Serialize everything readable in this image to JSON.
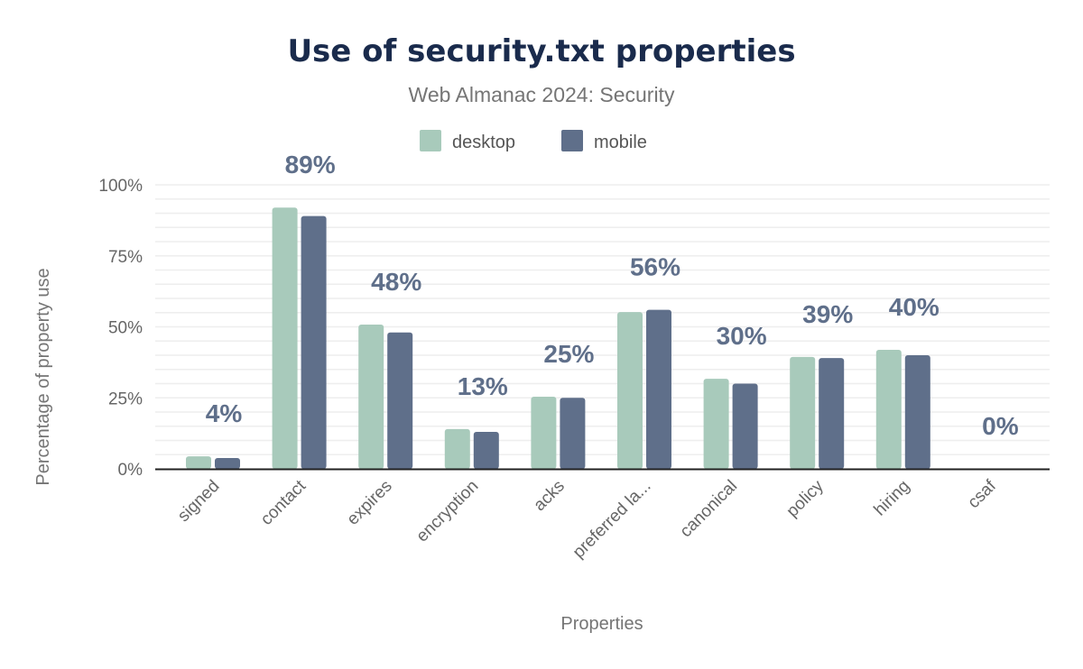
{
  "chart_data": {
    "type": "bar",
    "title": "Use of security.txt properties",
    "subtitle": "Web Almanac 2024: Security",
    "xlabel": "Properties",
    "ylabel": "Percentage of property use",
    "categories": [
      "signed",
      "contact",
      "expires",
      "encryption",
      "acks",
      "preferred la...",
      "canonical",
      "policy",
      "hiring",
      "csaf"
    ],
    "series": [
      {
        "name": "desktop",
        "color": "#a8cabb",
        "values": [
          4.4,
          92,
          50.8,
          14,
          25.4,
          55.2,
          31.7,
          39.4,
          41.9,
          0
        ]
      },
      {
        "name": "mobile",
        "color": "#5f6f8a",
        "values": [
          3.8,
          89,
          48,
          13,
          25,
          56,
          30,
          39,
          40,
          0
        ]
      }
    ],
    "data_labels": [
      "4%",
      "89%",
      "48%",
      "13%",
      "25%",
      "56%",
      "30%",
      "39%",
      "40%",
      "0%"
    ],
    "ylim": [
      0,
      100
    ],
    "yticks": [
      0,
      25,
      50,
      75,
      100
    ],
    "ytick_labels": [
      "0%",
      "25%",
      "50%",
      "75%",
      "100%"
    ],
    "grid": true,
    "legend_position": "top"
  }
}
